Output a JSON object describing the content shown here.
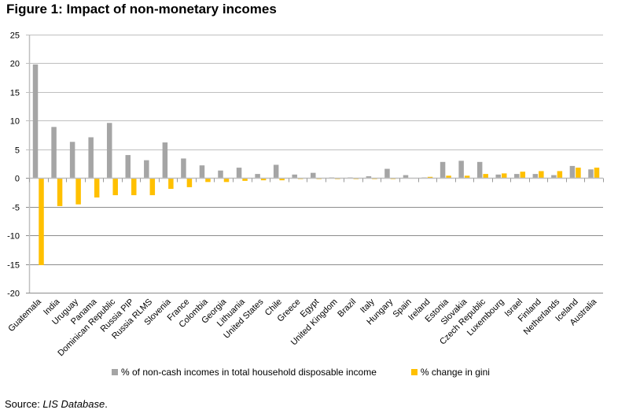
{
  "figure_title": "Figure 1: Impact of non-monetary incomes",
  "source_prefix": "Source: ",
  "source_name": "LIS Database",
  "source_suffix": ".",
  "colors": {
    "series1": "#A5A5A5",
    "series2": "#FFC000",
    "grid": "#BFBFBF",
    "gridDark": "#8C8C8C"
  },
  "chart_data": {
    "type": "bar",
    "title": "Figure 1: Impact of non-monetary incomes",
    "xlabel": "",
    "ylabel": "",
    "ylim": [
      -20,
      25
    ],
    "yticks": [
      25,
      20,
      15,
      10,
      5,
      0,
      -5,
      -10,
      -15,
      -20
    ],
    "grid": true,
    "legend_position": "bottom",
    "categories": [
      "Guatemala",
      "India",
      "Uruguay",
      "Panama",
      "Dominican Republic",
      "Russia PIP",
      "Russia RLMS",
      "Slovenia",
      "France",
      "Colombia",
      "Georgia",
      "Lithuania",
      "United States",
      "Chile",
      "Greece",
      "Egypt",
      "United Kingdom",
      "Brazil",
      "Italy",
      "Hungary",
      "Spain",
      "Ireland",
      "Estonia",
      "Slovakia",
      "Czech Republic",
      "Luxembourg",
      "Israel",
      "Finland",
      "Netherlands",
      "Iceland",
      "Australia"
    ],
    "series": [
      {
        "name": "% of non-cash incomes in total household disposable income",
        "values": [
          19.8,
          8.9,
          6.3,
          7.1,
          9.6,
          4.0,
          3.1,
          6.2,
          3.4,
          2.2,
          1.3,
          1.8,
          0.7,
          2.3,
          0.6,
          0.9,
          0.1,
          0.1,
          0.3,
          1.6,
          0.5,
          0.1,
          2.8,
          3.0,
          2.8,
          0.6,
          0.7,
          0.7,
          0.5,
          2.1,
          1.5
        ]
      },
      {
        "name": "% change in gini",
        "values": [
          -15.2,
          -4.9,
          -4.6,
          -3.4,
          -3.0,
          -3.0,
          -3.0,
          -1.9,
          -1.6,
          -0.7,
          -0.7,
          -0.5,
          -0.4,
          -0.4,
          -0.2,
          -0.2,
          -0.2,
          -0.2,
          -0.2,
          -0.2,
          -0.1,
          0.2,
          0.4,
          0.4,
          0.7,
          0.8,
          1.1,
          1.2,
          1.2,
          1.8,
          1.8
        ]
      }
    ]
  }
}
